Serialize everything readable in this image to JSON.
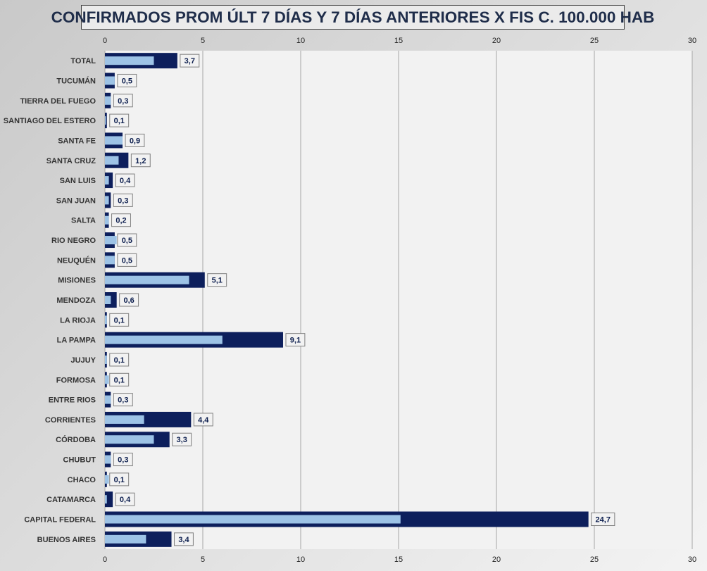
{
  "chart_data": {
    "type": "bar",
    "orientation": "horizontal",
    "title": "CONFIRMADOS PROM ÚLT 7 DÍAS Y 7 DÍAS ANTERIORES X FIS C. 100.000 HAB",
    "xlim": [
      0,
      30
    ],
    "x_ticks": [
      0,
      5,
      10,
      15,
      20,
      25,
      30
    ],
    "grid": true,
    "categories": [
      "TOTAL",
      "TUCUMÁN",
      "TIERRA  DEL FUEGO",
      "SANTIAGO  DEL ESTERO",
      "SANTA  FE",
      "SANTA  CRUZ",
      "SAN LUIS",
      "SAN JUAN",
      "SALTA",
      "RIO  NEGRO",
      "NEUQUÉN",
      "MISIONES",
      "MENDOZA",
      "LA RIOJA",
      "LA PAMPA",
      "JUJUY",
      "FORMOSA",
      "ENTRE  RIOS",
      "CORRIENTES",
      "CÓRDOBA",
      "CHUBUT",
      "CHACO",
      "CATAMARCA",
      "CAPITAL  FEDERAL",
      "BUENOS  AIRES"
    ],
    "series": [
      {
        "color": "#0d1f5c",
        "values": [
          3.7,
          0.5,
          0.3,
          0.1,
          0.9,
          1.2,
          0.4,
          0.3,
          0.2,
          0.5,
          0.5,
          5.1,
          0.6,
          0.1,
          9.1,
          0.1,
          0.1,
          0.3,
          4.4,
          3.3,
          0.3,
          0.1,
          0.4,
          24.7,
          3.4
        ],
        "data_labels": [
          "3,7",
          "0,5",
          "0,3",
          "0,1",
          "0,9",
          "1,2",
          "0,4",
          "0,3",
          "0,2",
          "0,5",
          "0,5",
          "5,1",
          "0,6",
          "0,1",
          "9,1",
          "0,1",
          "0,1",
          "0,3",
          "4,4",
          "3,3",
          "0,3",
          "0,1",
          "0,4",
          "24,7",
          "3,4"
        ]
      },
      {
        "color": "#9dc3e6",
        "values": [
          2.5,
          0.5,
          0.3,
          0.05,
          0.9,
          0.7,
          0.2,
          0.2,
          0.2,
          0.6,
          0.5,
          4.3,
          0.3,
          0.1,
          6.0,
          0.1,
          0.2,
          0.3,
          2.0,
          2.5,
          0.3,
          0.2,
          0.1,
          15.1,
          2.1
        ]
      }
    ]
  }
}
